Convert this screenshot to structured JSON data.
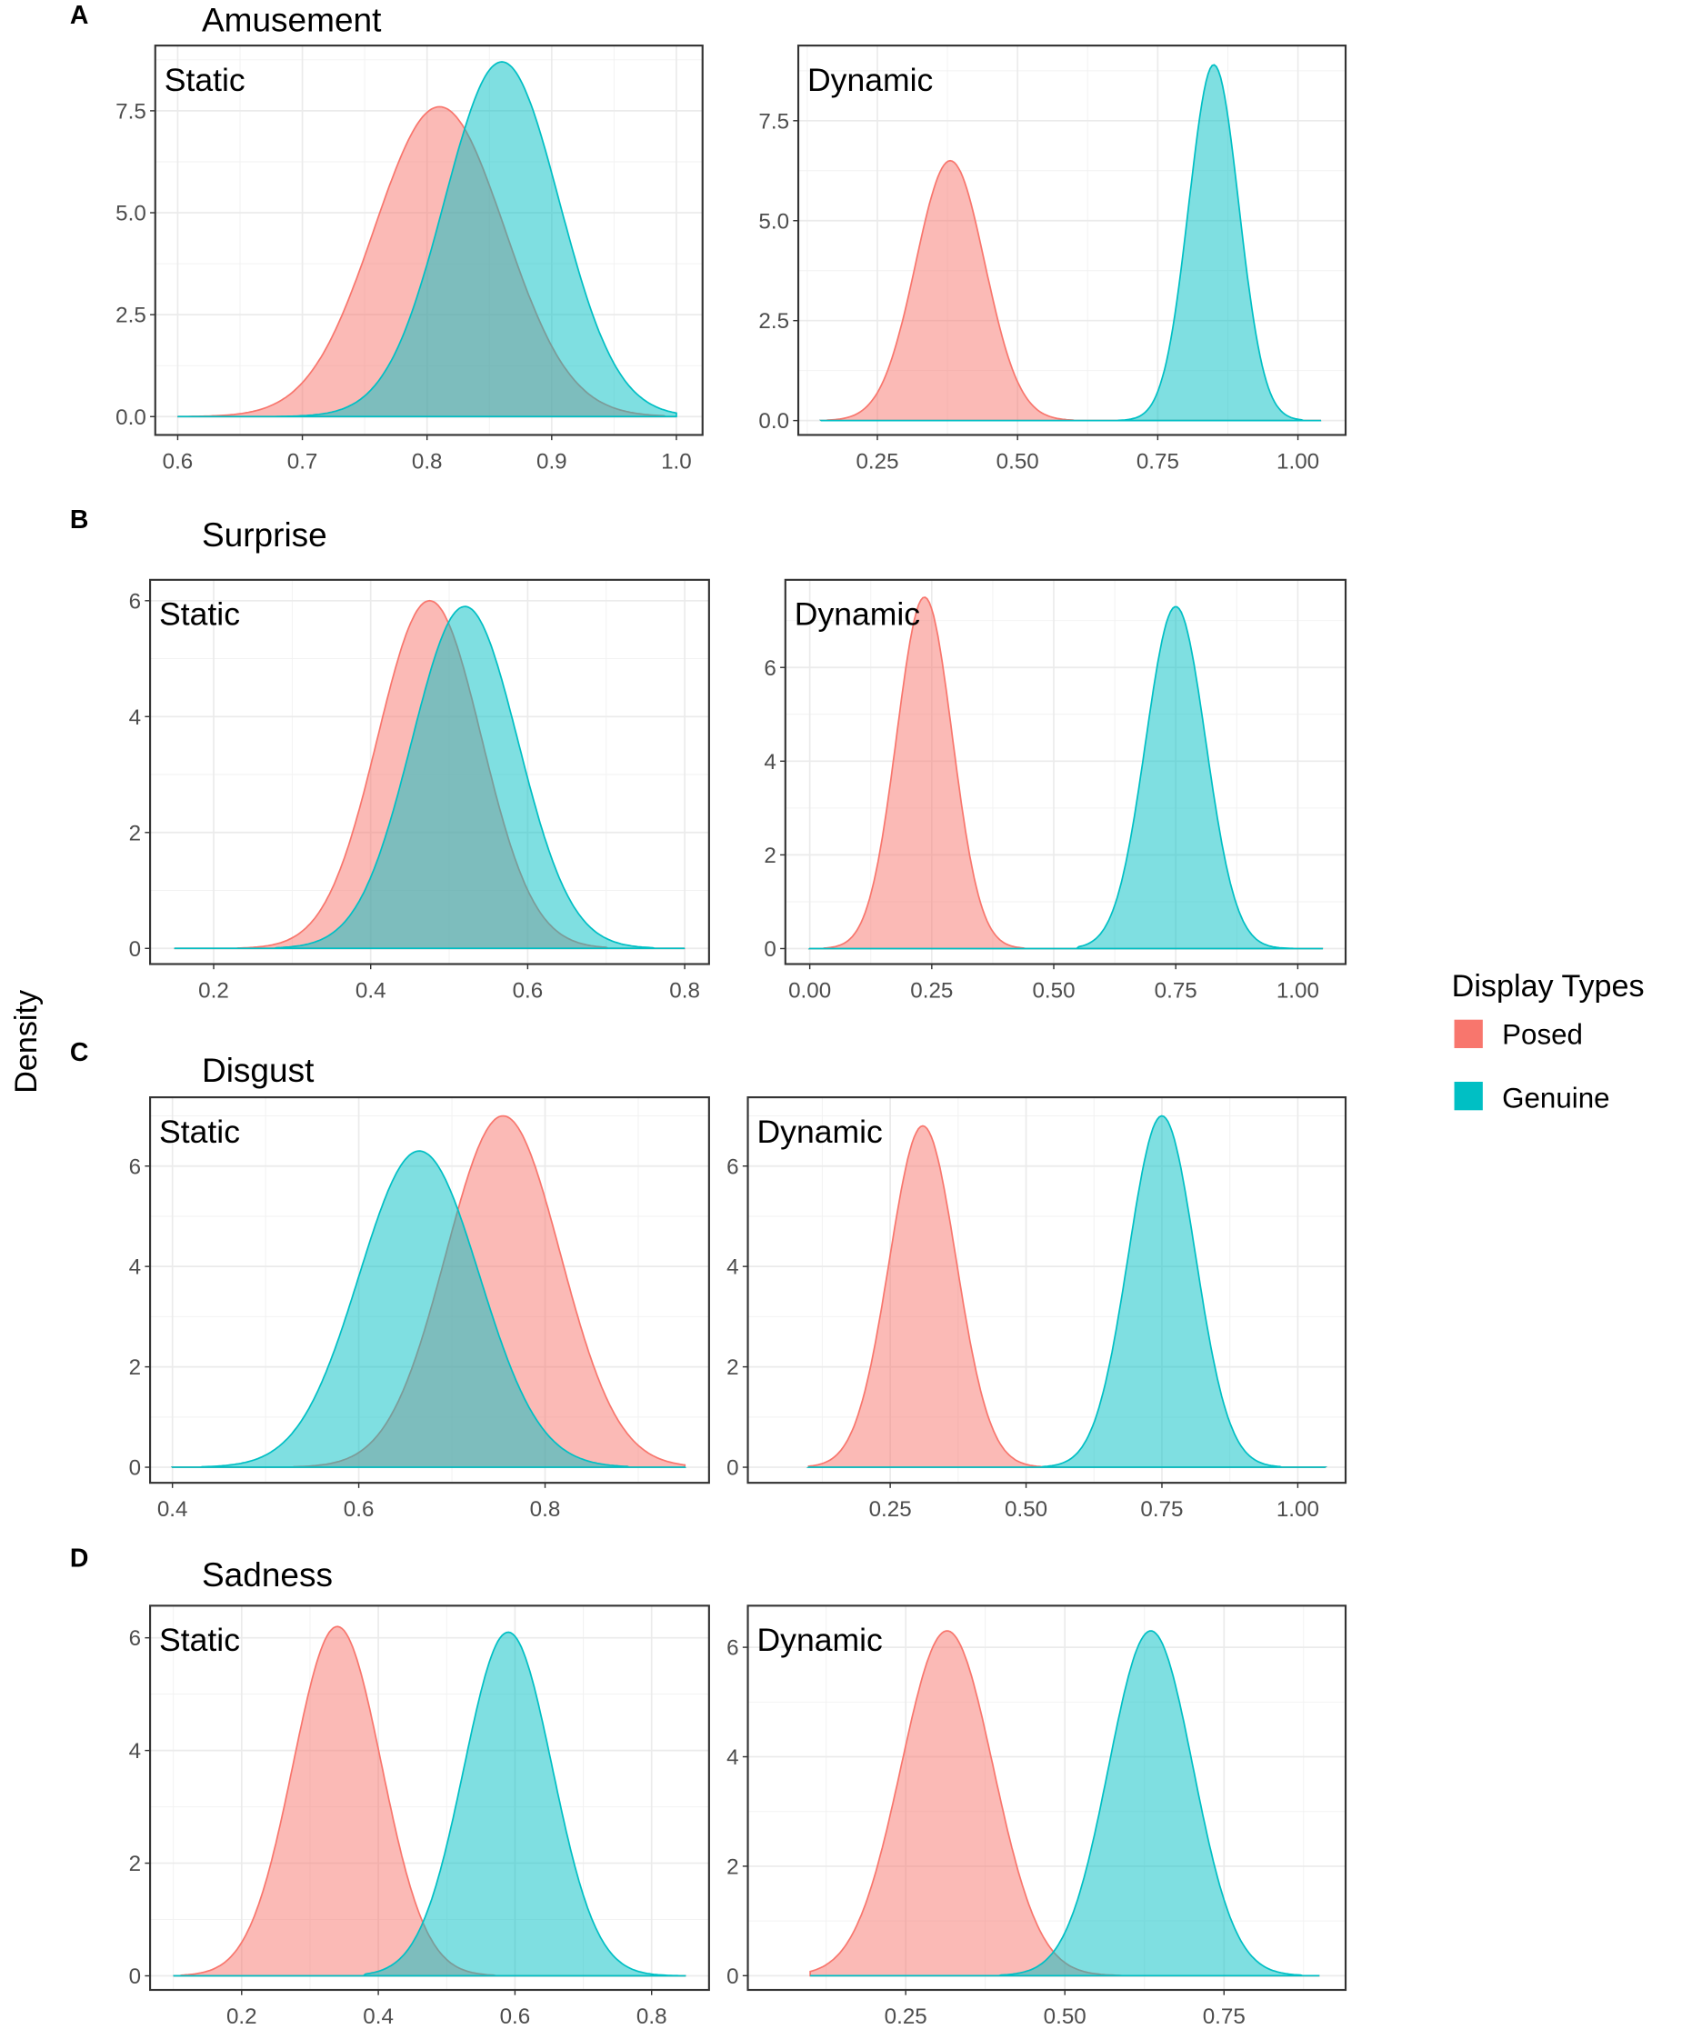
{
  "ylabel": "Density",
  "legend": {
    "title": "Display Types",
    "placement": "right",
    "items": [
      {
        "label": "Posed",
        "color": "#F8766D"
      },
      {
        "label": "Genuine",
        "color": "#00BFC4"
      }
    ]
  },
  "rows": [
    {
      "letter": "A",
      "title": "Amusement"
    },
    {
      "letter": "B",
      "title": "Surprise"
    },
    {
      "letter": "C",
      "title": "Disgust"
    },
    {
      "letter": "D",
      "title": "Sadness"
    }
  ],
  "chart_data": [
    {
      "type": "area",
      "row": 0,
      "panel": "Static",
      "grid": true,
      "xlim": [
        0.582,
        1.021
      ],
      "ylim": [
        -0.45,
        9.1
      ],
      "xticks": [
        "0.6",
        "0.7",
        "0.8",
        "0.9",
        "1.0"
      ],
      "xtick_values": [
        0.6,
        0.7,
        0.8,
        0.9,
        1.0
      ],
      "yticks": [
        "0.0",
        "2.5",
        "5.0",
        "7.5"
      ],
      "ytick_values": [
        0,
        2.5,
        5,
        7.5
      ],
      "x_range": [
        0.6,
        1.0
      ],
      "series": [
        {
          "name": "Posed",
          "mode": 0.81,
          "peak": 7.6,
          "support": [
            0.63,
            0.97
          ]
        },
        {
          "name": "Genuine",
          "mode": 0.86,
          "peak": 8.7,
          "support": [
            0.7,
            1.0
          ]
        }
      ]
    },
    {
      "type": "area",
      "row": 0,
      "panel": "Dynamic",
      "grid": true,
      "xlim": [
        0.109,
        1.085
      ],
      "ylim": [
        -0.36,
        9.38
      ],
      "xticks": [
        "0.25",
        "0.50",
        "0.75",
        "1.00"
      ],
      "xtick_values": [
        0.25,
        0.5,
        0.75,
        1.0
      ],
      "yticks": [
        "0.0",
        "2.5",
        "5.0",
        "7.5"
      ],
      "ytick_values": [
        0,
        2.5,
        5,
        7.5
      ],
      "x_range": [
        0.15,
        1.04
      ],
      "series": [
        {
          "name": "Posed",
          "mode": 0.38,
          "peak": 6.5,
          "support": [
            0.18,
            0.58
          ]
        },
        {
          "name": "Genuine",
          "mode": 0.85,
          "peak": 8.9,
          "support": [
            0.7,
            0.99
          ]
        }
      ]
    },
    {
      "type": "area",
      "row": 1,
      "panel": "Static",
      "grid": true,
      "xlim": [
        0.119,
        0.831
      ],
      "ylim": [
        -0.27,
        6.36
      ],
      "xticks": [
        "0.2",
        "0.4",
        "0.6",
        "0.8"
      ],
      "xtick_values": [
        0.2,
        0.4,
        0.6,
        0.8
      ],
      "yticks": [
        "0",
        "2",
        "4",
        "6"
      ],
      "ytick_values": [
        0,
        2,
        4,
        6
      ],
      "x_range": [
        0.15,
        0.8
      ],
      "series": [
        {
          "name": "Posed",
          "mode": 0.475,
          "peak": 6.0,
          "support": [
            0.25,
            0.68
          ]
        },
        {
          "name": "Genuine",
          "mode": 0.52,
          "peak": 5.9,
          "support": [
            0.3,
            0.74
          ]
        }
      ]
    },
    {
      "type": "area",
      "row": 1,
      "panel": "Dynamic",
      "grid": true,
      "xlim": [
        -0.05,
        1.098
      ],
      "ylim": [
        -0.33,
        7.87
      ],
      "xticks": [
        "0.00",
        "0.25",
        "0.50",
        "0.75",
        "1.00"
      ],
      "xtick_values": [
        0,
        0.25,
        0.5,
        0.75,
        1.0
      ],
      "yticks": [
        "0",
        "2",
        "4",
        "6"
      ],
      "ytick_values": [
        0,
        2,
        4,
        6
      ],
      "x_range": [
        0.0,
        1.05
      ],
      "series": [
        {
          "name": "Posed",
          "mode": 0.235,
          "peak": 7.5,
          "support": [
            0.05,
            0.42
          ]
        },
        {
          "name": "Genuine",
          "mode": 0.75,
          "peak": 7.3,
          "support": [
            0.57,
            0.97
          ]
        }
      ]
    },
    {
      "type": "area",
      "row": 2,
      "panel": "Static",
      "grid": true,
      "xlim": [
        0.376,
        0.976
      ],
      "ylim": [
        -0.31,
        7.37
      ],
      "xticks": [
        "0.4",
        "0.6",
        "0.8"
      ],
      "xtick_values": [
        0.4,
        0.6,
        0.8
      ],
      "yticks": [
        "0",
        "2",
        "4",
        "6"
      ],
      "ytick_values": [
        0,
        2,
        4,
        6
      ],
      "x_range": [
        0.4,
        0.95
      ],
      "series": [
        {
          "name": "Posed",
          "mode": 0.755,
          "peak": 7.0,
          "support": [
            0.55,
            0.95
          ]
        },
        {
          "name": "Genuine",
          "mode": 0.665,
          "peak": 6.3,
          "support": [
            0.45,
            0.87
          ]
        }
      ]
    },
    {
      "type": "area",
      "row": 2,
      "panel": "Dynamic",
      "grid": true,
      "xlim": [
        -0.012,
        1.088
      ],
      "ylim": [
        -0.31,
        7.37
      ],
      "xticks": [
        "0.25",
        "0.50",
        "0.75",
        "1.00"
      ],
      "xtick_values": [
        0.25,
        0.5,
        0.75,
        1.0
      ],
      "yticks": [
        "0",
        "2",
        "4",
        "6"
      ],
      "ytick_values": [
        0,
        2,
        4,
        6
      ],
      "x_range": [
        0.1,
        1.05
      ],
      "series": [
        {
          "name": "Posed",
          "mode": 0.31,
          "peak": 6.8,
          "support": [
            0.12,
            0.52
          ]
        },
        {
          "name": "Genuine",
          "mode": 0.75,
          "peak": 7.0,
          "support": [
            0.55,
            0.95
          ]
        }
      ]
    },
    {
      "type": "area",
      "row": 3,
      "panel": "Static",
      "grid": true,
      "xlim": [
        0.066,
        0.884
      ],
      "ylim": [
        -0.25,
        6.57
      ],
      "xticks": [
        "0.2",
        "0.4",
        "0.6",
        "0.8"
      ],
      "xtick_values": [
        0.2,
        0.4,
        0.6,
        0.8
      ],
      "yticks": [
        "0",
        "2",
        "4",
        "6"
      ],
      "ytick_values": [
        0,
        2,
        4,
        6
      ],
      "x_range": [
        0.1,
        0.85
      ],
      "series": [
        {
          "name": "Posed",
          "mode": 0.34,
          "peak": 6.2,
          "support": [
            0.13,
            0.55
          ]
        },
        {
          "name": "Genuine",
          "mode": 0.59,
          "peak": 6.1,
          "support": [
            0.4,
            0.82
          ]
        }
      ]
    },
    {
      "type": "area",
      "row": 3,
      "panel": "Dynamic",
      "grid": true,
      "xlim": [
        0.002,
        0.941
      ],
      "ylim": [
        -0.26,
        6.76
      ],
      "xticks": [
        "0.25",
        "0.50",
        "0.75"
      ],
      "xtick_values": [
        0.25,
        0.5,
        0.75
      ],
      "yticks": [
        "0",
        "2",
        "4",
        "6"
      ],
      "ytick_values": [
        0,
        2,
        4,
        6
      ],
      "x_range": [
        0.1,
        0.9
      ],
      "series": [
        {
          "name": "Posed",
          "mode": 0.315,
          "peak": 6.3,
          "support": [
            0.1,
            0.57
          ]
        },
        {
          "name": "Genuine",
          "mode": 0.635,
          "peak": 6.3,
          "support": [
            0.42,
            0.85
          ]
        }
      ]
    }
  ]
}
